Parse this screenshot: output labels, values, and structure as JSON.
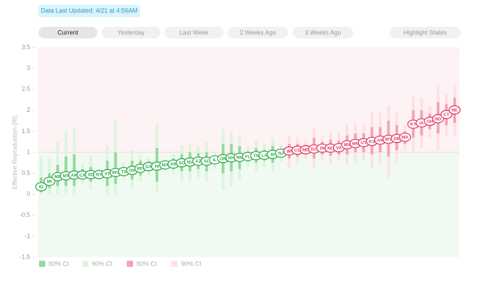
{
  "header": {
    "updated": "Data Last Updated: 4/21 at 4:56AM"
  },
  "buttons": [
    "Current",
    "Yesterday",
    "Last Week",
    "2 Weeks Ago",
    "3 Weeks Ago",
    "Highlight States"
  ],
  "chart_data": {
    "type": "rt",
    "y_label": "Effective Reproduction (Rt)",
    "ylim": [
      -1.5,
      3.5
    ],
    "yticks": [
      -1.5,
      -1,
      -0.5,
      0,
      0.5,
      1,
      1.5,
      2,
      2.5,
      3,
      3.5
    ],
    "threshold": 1,
    "below_color": "#2fa84a",
    "above_color": "#e2385f",
    "categories": [
      "ID",
      "MI",
      "ME",
      "MT",
      "AK",
      "CA",
      "SD",
      "NY",
      "VT",
      "WV",
      "TX",
      "OK",
      "MO",
      "GA",
      "HI",
      "MA",
      "PA",
      "SC",
      "NV",
      "AZ",
      "AL",
      "IL",
      "OR",
      "NH",
      "NM",
      "FL",
      "TN",
      "LA",
      "RI",
      "NJ",
      "WI",
      "CO",
      "MD",
      "DC",
      "IN",
      "NC",
      "VA",
      "MS",
      "MN",
      "UT",
      "KS",
      "AR",
      "WY",
      "DE",
      "WA",
      "KY",
      "IA",
      "OH",
      "ND",
      "CT",
      "NE"
    ],
    "values": [
      0.18,
      0.31,
      0.42,
      0.44,
      0.46,
      0.46,
      0.47,
      0.47,
      0.49,
      0.52,
      0.54,
      0.57,
      0.62,
      0.66,
      0.67,
      0.7,
      0.72,
      0.75,
      0.77,
      0.79,
      0.79,
      0.82,
      0.85,
      0.87,
      0.88,
      0.9,
      0.92,
      0.93,
      0.95,
      0.98,
      1.03,
      1.05,
      1.06,
      1.08,
      1.1,
      1.1,
      1.11,
      1.18,
      1.21,
      1.23,
      1.26,
      1.29,
      1.31,
      1.33,
      1.36,
      1.67,
      1.7,
      1.74,
      1.8,
      1.9,
      2.01
    ],
    "ci50": [
      [
        0.05,
        0.4
      ],
      [
        0.15,
        0.5
      ],
      [
        0.2,
        0.7
      ],
      [
        0.2,
        0.9
      ],
      [
        0.2,
        0.95
      ],
      [
        0.35,
        0.6
      ],
      [
        0.3,
        0.65
      ],
      [
        0.4,
        0.55
      ],
      [
        0.2,
        0.8
      ],
      [
        0.25,
        1.0
      ],
      [
        0.45,
        0.65
      ],
      [
        0.35,
        0.8
      ],
      [
        0.45,
        0.8
      ],
      [
        0.55,
        0.78
      ],
      [
        0.3,
        1.1
      ],
      [
        0.62,
        0.78
      ],
      [
        0.6,
        0.85
      ],
      [
        0.55,
        0.95
      ],
      [
        0.55,
        1.0
      ],
      [
        0.6,
        0.98
      ],
      [
        0.55,
        1.0
      ],
      [
        0.72,
        0.92
      ],
      [
        0.5,
        1.2
      ],
      [
        0.55,
        1.2
      ],
      [
        0.6,
        1.15
      ],
      [
        0.78,
        1.02
      ],
      [
        0.75,
        1.1
      ],
      [
        0.8,
        1.06
      ],
      [
        0.75,
        1.15
      ],
      [
        0.88,
        1.08
      ],
      [
        0.85,
        1.2
      ],
      [
        0.9,
        1.2
      ],
      [
        0.95,
        1.18
      ],
      [
        0.85,
        1.35
      ],
      [
        0.95,
        1.25
      ],
      [
        0.92,
        1.3
      ],
      [
        0.95,
        1.28
      ],
      [
        0.95,
        1.4
      ],
      [
        1.0,
        1.45
      ],
      [
        1.0,
        1.45
      ],
      [
        0.95,
        1.6
      ],
      [
        1.0,
        1.6
      ],
      [
        0.9,
        1.75
      ],
      [
        1.05,
        1.65
      ],
      [
        1.2,
        1.5
      ],
      [
        1.35,
        2.0
      ],
      [
        1.4,
        2.0
      ],
      [
        1.55,
        1.92
      ],
      [
        1.45,
        2.2
      ],
      [
        1.65,
        2.15
      ],
      [
        1.7,
        2.3
      ]
    ],
    "ci90": [
      [
        0,
        0.9
      ],
      [
        0,
        0.85
      ],
      [
        0,
        1.25
      ],
      [
        0,
        1.5
      ],
      [
        0,
        1.6
      ],
      [
        0.25,
        0.75
      ],
      [
        0.1,
        0.9
      ],
      [
        0.35,
        0.6
      ],
      [
        0,
        1.15
      ],
      [
        0,
        1.75
      ],
      [
        0.35,
        0.75
      ],
      [
        0.15,
        1.05
      ],
      [
        0.3,
        0.95
      ],
      [
        0.45,
        0.88
      ],
      [
        0.05,
        1.65
      ],
      [
        0.55,
        0.85
      ],
      [
        0.5,
        0.95
      ],
      [
        0.3,
        1.15
      ],
      [
        0.3,
        1.2
      ],
      [
        0.4,
        1.15
      ],
      [
        0.3,
        1.25
      ],
      [
        0.6,
        1.0
      ],
      [
        0.1,
        1.55
      ],
      [
        0.2,
        1.5
      ],
      [
        0.35,
        1.4
      ],
      [
        0.65,
        1.15
      ],
      [
        0.55,
        1.3
      ],
      [
        0.65,
        1.2
      ],
      [
        0.55,
        1.35
      ],
      [
        0.78,
        1.18
      ],
      [
        0.65,
        1.4
      ],
      [
        0.75,
        1.35
      ],
      [
        0.85,
        1.3
      ],
      [
        0.6,
        1.6
      ],
      [
        0.8,
        1.4
      ],
      [
        0.7,
        1.5
      ],
      [
        0.8,
        1.45
      ],
      [
        0.7,
        1.65
      ],
      [
        0.75,
        1.7
      ],
      [
        0.8,
        1.7
      ],
      [
        0.6,
        1.95
      ],
      [
        0.7,
        1.95
      ],
      [
        0.4,
        2.1
      ],
      [
        0.75,
        1.95
      ],
      [
        1.05,
        1.65
      ],
      [
        1.0,
        2.35
      ],
      [
        1.1,
        2.3
      ],
      [
        1.35,
        2.1
      ],
      [
        1.05,
        2.6
      ],
      [
        1.4,
        2.4
      ],
      [
        1.4,
        2.6
      ]
    ],
    "legend": [
      {
        "label": "50% CI",
        "color": "#8fdc9c"
      },
      {
        "label": "90% CI",
        "color": "#dcf5df"
      },
      {
        "label": "50% CI",
        "color": "#f5a3b3"
      },
      {
        "label": "90% CI",
        "color": "#fde1e7"
      }
    ]
  }
}
